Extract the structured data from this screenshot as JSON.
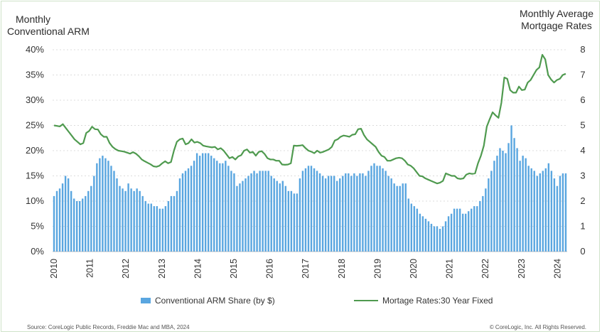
{
  "left_axis_title": {
    "line1": "Monthly",
    "line2": "Conventional ARM"
  },
  "right_axis_title": {
    "line1": "Monthly Average",
    "line2": "Mortgage Rates"
  },
  "legend": {
    "bars": "Conventional ARM Share (by $)",
    "line": "Mortage Rates:30 Year Fixed"
  },
  "footer": {
    "source": "Source: CoreLogic Public Records, Freddie Mac and MBA, 2024",
    "copyright": "© CoreLogic, Inc. All Rights Reserved."
  },
  "colors": {
    "bars": "#5aa6e0",
    "line": "#4f9a4f",
    "grid": "#dcdcdc"
  },
  "chart_data": {
    "type": "bar+line",
    "x_tick_labels": [
      "2010",
      "2011",
      "2012",
      "2013",
      "2014",
      "2015",
      "2016",
      "2017",
      "2018",
      "2019",
      "2020",
      "2021",
      "2022",
      "2023",
      "2024"
    ],
    "left_axis": {
      "min": 0,
      "max": 40,
      "ticks": [
        "0%",
        "5%",
        "10%",
        "15%",
        "20%",
        "25%",
        "30%",
        "35%",
        "40%"
      ]
    },
    "right_axis": {
      "min": 0,
      "max": 8,
      "ticks": [
        "0",
        "1",
        "2",
        "3",
        "4",
        "5",
        "6",
        "7",
        "8"
      ]
    },
    "series": [
      {
        "name": "Conventional ARM Share (by $)",
        "type": "bar",
        "axis": "left",
        "unit": "%",
        "values": [
          11,
          12,
          12.5,
          13.5,
          15,
          14.5,
          12,
          10.5,
          10,
          10,
          10.5,
          11,
          12,
          13,
          15,
          17.5,
          18.5,
          19,
          18.5,
          18,
          17,
          16,
          14.5,
          13,
          12.5,
          12,
          13.5,
          12.5,
          12,
          12.5,
          12,
          11,
          10,
          9.5,
          9.5,
          9,
          9,
          8.5,
          8.5,
          9,
          10,
          11,
          11,
          12,
          14.5,
          15.5,
          16,
          16.5,
          17,
          18,
          19.5,
          19,
          19.5,
          19.5,
          19.5,
          19,
          18.5,
          18,
          17.5,
          17.5,
          18,
          17,
          16,
          15.5,
          13,
          13.5,
          14,
          14.5,
          15,
          15.5,
          16,
          15.5,
          16,
          16,
          16,
          16,
          15,
          14.5,
          14,
          13.5,
          14,
          13,
          12,
          12,
          11.5,
          11.5,
          14.5,
          16,
          16.5,
          17,
          17,
          16.5,
          16,
          15.5,
          15,
          14.5,
          15,
          15,
          15,
          14,
          14.5,
          15,
          15.5,
          15.5,
          15,
          15.5,
          15,
          15.5,
          15.5,
          15,
          16,
          17,
          17.5,
          17,
          17,
          16.5,
          16,
          15,
          14.5,
          13.5,
          13,
          13,
          13.5,
          13.5,
          10.5,
          9.5,
          9,
          8.5,
          7.5,
          7,
          6.5,
          6,
          5.5,
          5,
          5,
          4.5,
          5,
          6,
          7,
          7.5,
          8.5,
          8.5,
          8.5,
          7.5,
          7.5,
          8,
          8.5,
          9,
          9,
          10,
          11,
          12.5,
          14.5,
          16,
          18,
          19,
          20.5,
          20,
          19.5,
          21.5,
          25,
          22.5,
          20.5,
          18,
          19,
          18.5,
          17,
          16.5,
          16,
          15,
          15.5,
          16,
          16.5,
          17.5,
          16,
          14.5,
          13,
          15,
          15.5,
          15.5
        ]
      },
      {
        "name": "Mortage Rates:30 Year Fixed",
        "type": "line",
        "axis": "right",
        "unit": "%",
        "values": [
          5.0,
          4.98,
          4.96,
          5.05,
          4.9,
          4.75,
          4.6,
          4.45,
          4.35,
          4.25,
          4.3,
          4.7,
          4.78,
          4.95,
          4.85,
          4.84,
          4.65,
          4.55,
          4.55,
          4.3,
          4.15,
          4.06,
          4.0,
          3.98,
          3.96,
          3.92,
          3.88,
          3.94,
          3.88,
          3.78,
          3.65,
          3.58,
          3.52,
          3.46,
          3.38,
          3.36,
          3.4,
          3.5,
          3.58,
          3.5,
          3.55,
          4.0,
          4.35,
          4.45,
          4.48,
          4.25,
          4.3,
          4.45,
          4.32,
          4.35,
          4.3,
          4.2,
          4.17,
          4.15,
          4.13,
          4.15,
          4.05,
          4.1,
          4.0,
          3.85,
          3.7,
          3.75,
          3.65,
          3.77,
          3.82,
          4.0,
          4.05,
          3.92,
          3.95,
          3.8,
          3.95,
          3.98,
          3.87,
          3.7,
          3.65,
          3.65,
          3.6,
          3.6,
          3.45,
          3.44,
          3.45,
          3.5,
          4.2,
          4.19,
          4.2,
          4.22,
          4.1,
          4.0,
          3.96,
          3.9,
          4.0,
          3.92,
          3.95,
          4.0,
          4.05,
          4.15,
          4.4,
          4.45,
          4.55,
          4.6,
          4.58,
          4.55,
          4.63,
          4.65,
          4.85,
          4.87,
          4.62,
          4.45,
          4.35,
          4.25,
          4.15,
          3.95,
          3.8,
          3.75,
          3.6,
          3.6,
          3.65,
          3.7,
          3.72,
          3.7,
          3.6,
          3.45,
          3.4,
          3.3,
          3.15,
          3.0,
          2.98,
          2.9,
          2.85,
          2.8,
          2.75,
          2.7,
          2.73,
          2.8,
          3.1,
          3.05,
          3.0,
          3.0,
          2.9,
          2.88,
          2.9,
          3.05,
          3.1,
          3.08,
          3.1,
          3.5,
          3.8,
          4.2,
          4.95,
          5.25,
          5.52,
          5.4,
          5.3,
          5.9,
          6.9,
          6.85,
          6.4,
          6.3,
          6.3,
          6.54,
          6.4,
          6.42,
          6.7,
          6.8,
          7.0,
          7.2,
          7.3,
          7.8,
          7.62,
          7.0,
          6.82,
          6.7,
          6.8,
          6.85,
          7.0,
          7.05
        ]
      }
    ]
  }
}
